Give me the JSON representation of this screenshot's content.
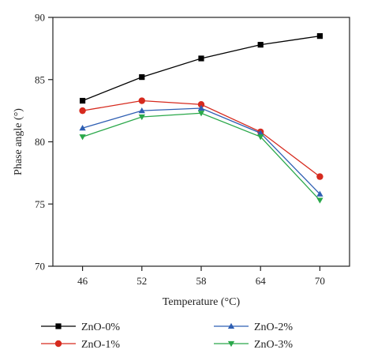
{
  "chart_data": {
    "type": "line",
    "xlabel": "Temperature (°C)",
    "ylabel": "Phase angle (°)",
    "x": [
      46,
      52,
      58,
      64,
      70
    ],
    "x_ticks": [
      "46",
      "52",
      "58",
      "64",
      "70"
    ],
    "y_ticks": [
      "70",
      "75",
      "80",
      "85",
      "90"
    ],
    "ylim": [
      70,
      90
    ],
    "grid": false,
    "legend_position": "bottom",
    "series": [
      {
        "name": "ZnO-0%",
        "marker": "square",
        "color": "#000000",
        "values": [
          83.3,
          85.2,
          86.7,
          87.8,
          88.5
        ]
      },
      {
        "name": "ZnO-1%",
        "marker": "circle",
        "color": "#d62a1e",
        "values": [
          82.5,
          83.3,
          83.0,
          80.8,
          77.2
        ]
      },
      {
        "name": "ZnO-2%",
        "marker": "triangle-up",
        "color": "#2f5fb3",
        "values": [
          81.1,
          82.5,
          82.7,
          80.7,
          75.8
        ]
      },
      {
        "name": "ZnO-3%",
        "marker": "triangle-down",
        "color": "#2aa84a",
        "values": [
          80.4,
          82.0,
          82.3,
          80.4,
          75.3
        ]
      }
    ]
  }
}
